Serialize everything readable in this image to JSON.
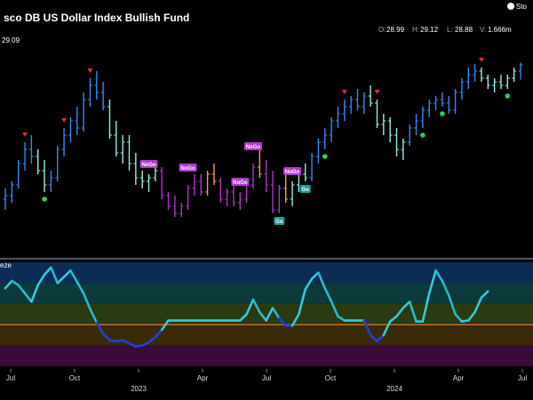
{
  "header": {
    "title": "sco DB US Dollar Index Bullish Fund",
    "logo_text": "Sto",
    "last_price_label": "29.09",
    "ohlcv": [
      {
        "label": "O:",
        "value": "28.99"
      },
      {
        "label": "H:",
        "value": "29.12"
      },
      {
        "label": "L:",
        "value": "28.88"
      },
      {
        "label": "V:",
        "value": "1.666m"
      }
    ]
  },
  "colors": {
    "strong_up": "#2d8cf0",
    "weak_up": "#8ff0e0",
    "weak_down": "#ff9b4a",
    "strong_down": "#b033c9",
    "signal_down": "#e0302b",
    "signal_up": "#27d35a",
    "nogo_tag": "#b03ad0",
    "go_tag": "#1e9b95"
  },
  "chart_data": [
    {
      "type": "candlestick",
      "title": "sco DB US Dollar Index Bullish Fund",
      "ylim": [
        26.5,
        29.5
      ],
      "x_tick_labels": [
        "Jul",
        "Oct",
        "2023",
        "Apr",
        "Jul",
        "Oct",
        "2024",
        "Apr",
        "Jul"
      ],
      "bars": [
        {
          "o": 27.2,
          "h": 27.35,
          "l": 27.05,
          "c": 27.25,
          "s": "strong_up"
        },
        {
          "o": 27.25,
          "h": 27.45,
          "l": 27.15,
          "c": 27.4,
          "s": "strong_up"
        },
        {
          "o": 27.4,
          "h": 27.75,
          "l": 27.35,
          "c": 27.7,
          "s": "strong_up"
        },
        {
          "o": 27.7,
          "h": 28.0,
          "l": 27.6,
          "c": 27.9,
          "s": "strong_up"
        },
        {
          "o": 27.9,
          "h": 28.1,
          "l": 27.7,
          "c": 27.8,
          "s": "strong_up"
        },
        {
          "o": 27.8,
          "h": 27.9,
          "l": 27.55,
          "c": 27.6,
          "s": "weak_up"
        },
        {
          "o": 27.6,
          "h": 27.75,
          "l": 27.3,
          "c": 27.4,
          "s": "weak_up"
        },
        {
          "o": 27.4,
          "h": 27.6,
          "l": 27.3,
          "c": 27.5,
          "s": "strong_up"
        },
        {
          "o": 27.5,
          "h": 27.95,
          "l": 27.45,
          "c": 27.9,
          "s": "strong_up"
        },
        {
          "o": 27.9,
          "h": 28.2,
          "l": 27.8,
          "c": 28.1,
          "s": "strong_up"
        },
        {
          "o": 28.1,
          "h": 28.35,
          "l": 28.0,
          "c": 28.3,
          "s": "strong_up"
        },
        {
          "o": 28.3,
          "h": 28.5,
          "l": 28.1,
          "c": 28.2,
          "s": "strong_up"
        },
        {
          "o": 28.2,
          "h": 28.7,
          "l": 28.15,
          "c": 28.6,
          "s": "strong_up"
        },
        {
          "o": 28.6,
          "h": 28.9,
          "l": 28.5,
          "c": 28.8,
          "s": "strong_up"
        },
        {
          "o": 28.8,
          "h": 29.0,
          "l": 28.6,
          "c": 28.7,
          "s": "strong_up"
        },
        {
          "o": 28.7,
          "h": 28.85,
          "l": 28.45,
          "c": 28.5,
          "s": "strong_up"
        },
        {
          "o": 28.5,
          "h": 28.6,
          "l": 28.05,
          "c": 28.1,
          "s": "weak_up"
        },
        {
          "o": 28.1,
          "h": 28.3,
          "l": 27.8,
          "c": 27.85,
          "s": "weak_up"
        },
        {
          "o": 27.85,
          "h": 28.1,
          "l": 27.7,
          "c": 28.0,
          "s": "weak_up"
        },
        {
          "o": 28.0,
          "h": 28.1,
          "l": 27.6,
          "c": 27.7,
          "s": "weak_up"
        },
        {
          "o": 27.7,
          "h": 27.85,
          "l": 27.4,
          "c": 27.5,
          "s": "weak_up"
        },
        {
          "o": 27.5,
          "h": 27.6,
          "l": 27.35,
          "c": 27.45,
          "s": "weak_up"
        },
        {
          "o": 27.45,
          "h": 27.55,
          "l": 27.3,
          "c": 27.5,
          "s": "weak_up"
        },
        {
          "o": 27.5,
          "h": 27.75,
          "l": 27.45,
          "c": 27.6,
          "s": "weak_up"
        },
        {
          "o": 27.6,
          "h": 27.65,
          "l": 27.2,
          "c": 27.25,
          "s": "strong_down"
        },
        {
          "o": 27.25,
          "h": 27.3,
          "l": 27.05,
          "c": 27.1,
          "s": "strong_down"
        },
        {
          "o": 27.1,
          "h": 27.25,
          "l": 26.95,
          "c": 27.0,
          "s": "strong_down"
        },
        {
          "o": 27.0,
          "h": 27.15,
          "l": 26.95,
          "c": 27.1,
          "s": "strong_down"
        },
        {
          "o": 27.1,
          "h": 27.4,
          "l": 27.05,
          "c": 27.35,
          "s": "strong_down"
        },
        {
          "o": 27.35,
          "h": 27.55,
          "l": 27.25,
          "c": 27.45,
          "s": "strong_down"
        },
        {
          "o": 27.45,
          "h": 27.55,
          "l": 27.25,
          "c": 27.3,
          "s": "strong_down"
        },
        {
          "o": 27.3,
          "h": 27.6,
          "l": 27.25,
          "c": 27.55,
          "s": "weak_down"
        },
        {
          "o": 27.55,
          "h": 27.7,
          "l": 27.4,
          "c": 27.45,
          "s": "weak_down"
        },
        {
          "o": 27.45,
          "h": 27.5,
          "l": 27.15,
          "c": 27.2,
          "s": "strong_down"
        },
        {
          "o": 27.2,
          "h": 27.35,
          "l": 27.1,
          "c": 27.3,
          "s": "strong_down"
        },
        {
          "o": 27.3,
          "h": 27.4,
          "l": 27.1,
          "c": 27.15,
          "s": "strong_down"
        },
        {
          "o": 27.15,
          "h": 27.3,
          "l": 27.05,
          "c": 27.2,
          "s": "strong_down"
        },
        {
          "o": 27.2,
          "h": 27.45,
          "l": 27.15,
          "c": 27.4,
          "s": "strong_down"
        },
        {
          "o": 27.4,
          "h": 27.7,
          "l": 27.35,
          "c": 27.65,
          "s": "strong_down"
        },
        {
          "o": 27.65,
          "h": 27.9,
          "l": 27.5,
          "c": 27.55,
          "s": "weak_down"
        },
        {
          "o": 27.55,
          "h": 27.75,
          "l": 27.3,
          "c": 27.4,
          "s": "strong_down"
        },
        {
          "o": 27.4,
          "h": 27.6,
          "l": 27.0,
          "c": 27.05,
          "s": "strong_down"
        },
        {
          "o": 27.05,
          "h": 27.4,
          "l": 27.0,
          "c": 27.35,
          "s": "strong_down"
        },
        {
          "o": 27.35,
          "h": 27.55,
          "l": 27.15,
          "c": 27.2,
          "s": "weak_down"
        },
        {
          "o": 27.2,
          "h": 27.45,
          "l": 27.1,
          "c": 27.4,
          "s": "weak_up"
        },
        {
          "o": 27.4,
          "h": 27.65,
          "l": 27.3,
          "c": 27.55,
          "s": "weak_up"
        },
        {
          "o": 27.55,
          "h": 27.7,
          "l": 27.45,
          "c": 27.5,
          "s": "weak_up"
        },
        {
          "o": 27.5,
          "h": 27.85,
          "l": 27.45,
          "c": 27.8,
          "s": "strong_up"
        },
        {
          "o": 27.8,
          "h": 28.05,
          "l": 27.7,
          "c": 28.0,
          "s": "strong_up"
        },
        {
          "o": 28.0,
          "h": 28.2,
          "l": 27.9,
          "c": 28.1,
          "s": "strong_up"
        },
        {
          "o": 28.1,
          "h": 28.35,
          "l": 28.0,
          "c": 28.3,
          "s": "strong_up"
        },
        {
          "o": 28.3,
          "h": 28.5,
          "l": 28.2,
          "c": 28.4,
          "s": "strong_up"
        },
        {
          "o": 28.4,
          "h": 28.6,
          "l": 28.3,
          "c": 28.5,
          "s": "strong_up"
        },
        {
          "o": 28.5,
          "h": 28.65,
          "l": 28.4,
          "c": 28.6,
          "s": "strong_up"
        },
        {
          "o": 28.6,
          "h": 28.75,
          "l": 28.45,
          "c": 28.5,
          "s": "strong_up"
        },
        {
          "o": 28.5,
          "h": 28.7,
          "l": 28.4,
          "c": 28.65,
          "s": "strong_up"
        },
        {
          "o": 28.65,
          "h": 28.8,
          "l": 28.5,
          "c": 28.55,
          "s": "weak_up"
        },
        {
          "o": 28.55,
          "h": 28.6,
          "l": 28.2,
          "c": 28.25,
          "s": "weak_up"
        },
        {
          "o": 28.25,
          "h": 28.4,
          "l": 28.1,
          "c": 28.3,
          "s": "weak_up"
        },
        {
          "o": 28.3,
          "h": 28.35,
          "l": 28.0,
          "c": 28.1,
          "s": "weak_up"
        },
        {
          "o": 28.1,
          "h": 28.2,
          "l": 27.8,
          "c": 27.9,
          "s": "weak_up"
        },
        {
          "o": 27.9,
          "h": 28.05,
          "l": 27.75,
          "c": 28.0,
          "s": "weak_up"
        },
        {
          "o": 28.0,
          "h": 28.25,
          "l": 27.95,
          "c": 28.2,
          "s": "strong_up"
        },
        {
          "o": 28.2,
          "h": 28.4,
          "l": 28.1,
          "c": 28.3,
          "s": "strong_up"
        },
        {
          "o": 28.3,
          "h": 28.5,
          "l": 28.2,
          "c": 28.45,
          "s": "strong_up"
        },
        {
          "o": 28.45,
          "h": 28.6,
          "l": 28.35,
          "c": 28.55,
          "s": "strong_up"
        },
        {
          "o": 28.55,
          "h": 28.65,
          "l": 28.45,
          "c": 28.6,
          "s": "strong_up"
        },
        {
          "o": 28.6,
          "h": 28.7,
          "l": 28.5,
          "c": 28.55,
          "s": "strong_up"
        },
        {
          "o": 28.55,
          "h": 28.65,
          "l": 28.4,
          "c": 28.45,
          "s": "strong_up"
        },
        {
          "o": 28.45,
          "h": 28.75,
          "l": 28.4,
          "c": 28.7,
          "s": "strong_up"
        },
        {
          "o": 28.7,
          "h": 28.9,
          "l": 28.6,
          "c": 28.85,
          "s": "strong_up"
        },
        {
          "o": 28.85,
          "h": 29.05,
          "l": 28.75,
          "c": 28.95,
          "s": "strong_up"
        },
        {
          "o": 28.95,
          "h": 29.1,
          "l": 28.85,
          "c": 29.0,
          "s": "strong_up"
        },
        {
          "o": 29.0,
          "h": 29.05,
          "l": 28.85,
          "c": 28.9,
          "s": "weak_up"
        },
        {
          "o": 28.9,
          "h": 28.95,
          "l": 28.75,
          "c": 28.8,
          "s": "weak_up"
        },
        {
          "o": 28.8,
          "h": 28.9,
          "l": 28.7,
          "c": 28.85,
          "s": "weak_up"
        },
        {
          "o": 28.85,
          "h": 28.95,
          "l": 28.75,
          "c": 28.8,
          "s": "weak_up"
        },
        {
          "o": 28.8,
          "h": 28.95,
          "l": 28.75,
          "c": 28.9,
          "s": "weak_up"
        },
        {
          "o": 28.9,
          "h": 29.05,
          "l": 28.85,
          "c": 29.0,
          "s": "weak_up"
        },
        {
          "o": 29.0,
          "h": 29.12,
          "l": 28.88,
          "c": 29.09,
          "s": "strong_up"
        }
      ],
      "signal_markers": [
        {
          "bar": 3,
          "type": "down"
        },
        {
          "bar": 6,
          "type": "up"
        },
        {
          "bar": 9,
          "type": "down"
        },
        {
          "bar": 13,
          "type": "down"
        },
        {
          "bar": 49,
          "type": "up"
        },
        {
          "bar": 52,
          "type": "down"
        },
        {
          "bar": 57,
          "type": "down"
        },
        {
          "bar": 64,
          "type": "up"
        },
        {
          "bar": 67,
          "type": "up"
        },
        {
          "bar": 73,
          "type": "down"
        },
        {
          "bar": 77,
          "type": "up"
        }
      ],
      "tags": [
        {
          "bar": 22,
          "text": "NoGo",
          "kind": "nogo"
        },
        {
          "bar": 28,
          "text": "NoGo",
          "kind": "nogo"
        },
        {
          "bar": 36,
          "text": "NoGo",
          "kind": "nogo"
        },
        {
          "bar": 38,
          "text": "NoGo",
          "kind": "nogo"
        },
        {
          "bar": 44,
          "text": "NoGo",
          "kind": "nogo"
        },
        {
          "bar": 42,
          "text": "Go",
          "kind": "go"
        },
        {
          "bar": 46,
          "text": "Go",
          "kind": "go"
        }
      ]
    },
    {
      "type": "line",
      "title": "eze",
      "ylim": [
        0,
        10
      ],
      "zero_line": 4.0,
      "points_start_bar": 0,
      "series": [
        {
          "values": [
            7.5,
            8.2,
            7.8,
            7.0,
            6.2,
            7.8,
            8.8,
            9.5,
            8.0,
            8.6,
            9.2,
            8.1,
            7.0,
            5.5,
            4.2,
            3.1,
            2.5,
            2.4,
            2.5,
            2.2,
            1.9,
            2.0,
            2.3,
            2.8,
            3.5,
            4.4,
            4.4,
            4.4,
            4.4,
            4.4,
            4.4,
            4.4,
            4.4,
            4.4,
            4.4,
            4.4,
            4.4,
            5.0,
            6.4,
            5.2,
            4.4,
            5.6,
            4.6,
            3.9,
            3.9,
            5.0,
            7.4,
            8.4,
            9.0,
            7.5,
            6.2,
            4.8,
            4.4,
            4.4,
            4.4,
            4.4,
            3.0,
            2.4,
            3.0,
            4.3,
            4.8,
            5.6,
            6.2,
            4.3,
            4.3,
            7.0,
            9.2,
            8.2,
            6.8,
            5.0,
            4.3,
            4.4,
            5.2,
            6.6,
            7.2
          ]
        }
      ]
    }
  ]
}
